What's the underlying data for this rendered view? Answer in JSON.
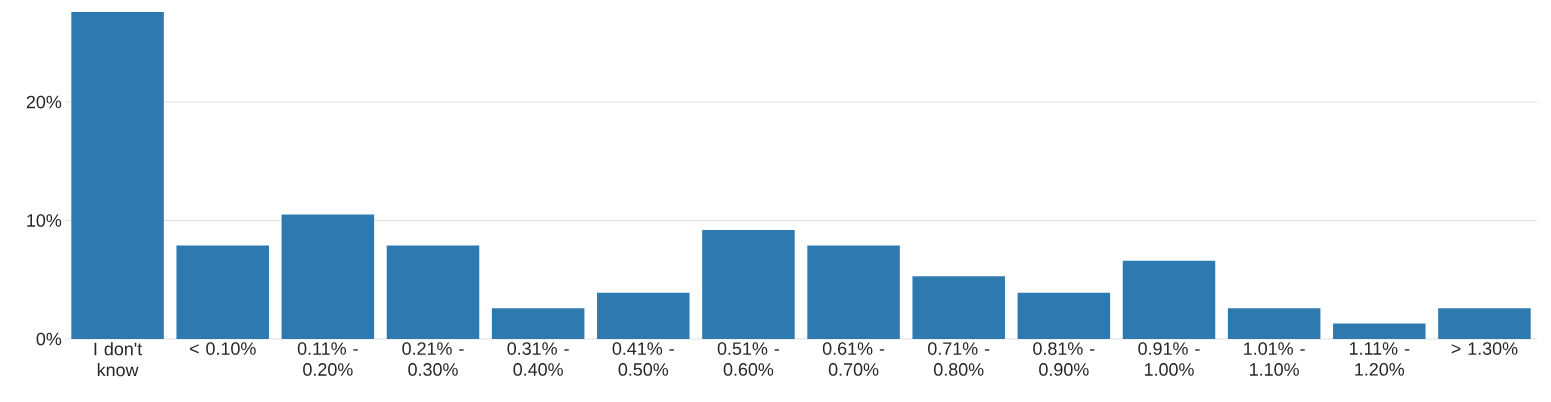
{
  "chart_data": {
    "type": "bar",
    "categories": [
      "I don't know",
      "< 0.10%",
      "0.11% - 0.20%",
      "0.21% - 0.30%",
      "0.31% - 0.40%",
      "0.41% - 0.50%",
      "0.51% - 0.60%",
      "0.61% - 0.70%",
      "0.71% - 0.80%",
      "0.81% - 0.90%",
      "0.91% - 1.00%",
      "1.01% - 1.10%",
      "1.11% - 1.20%",
      "> 1.30%"
    ],
    "values": [
      27.6,
      7.9,
      10.5,
      7.9,
      2.6,
      3.9,
      9.2,
      7.9,
      5.3,
      3.9,
      6.6,
      2.6,
      1.3,
      2.6
    ],
    "color": "#2e7ab0",
    "ylim": [
      0,
      27.6
    ],
    "yticks": [
      {
        "value": 0,
        "label": "0%"
      },
      {
        "value": 10,
        "label": "10%"
      },
      {
        "value": 20,
        "label": "20%"
      }
    ],
    "grid": "y"
  }
}
